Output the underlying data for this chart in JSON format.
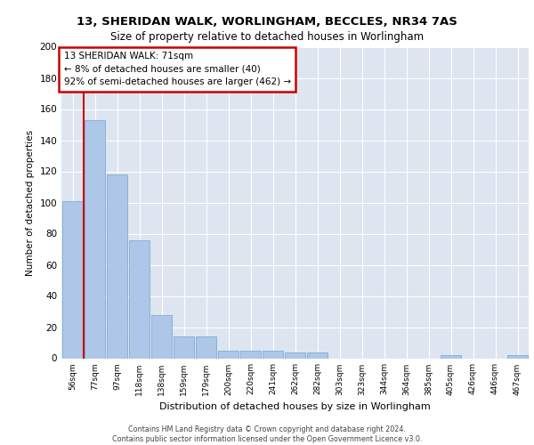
{
  "title_line1": "13, SHERIDAN WALK, WORLINGHAM, BECCLES, NR34 7AS",
  "title_line2": "Size of property relative to detached houses in Worlingham",
  "xlabel": "Distribution of detached houses by size in Worlingham",
  "ylabel": "Number of detached properties",
  "categories": [
    "56sqm",
    "77sqm",
    "97sqm",
    "118sqm",
    "138sqm",
    "159sqm",
    "179sqm",
    "200sqm",
    "220sqm",
    "241sqm",
    "262sqm",
    "282sqm",
    "303sqm",
    "323sqm",
    "344sqm",
    "364sqm",
    "385sqm",
    "405sqm",
    "426sqm",
    "446sqm",
    "467sqm"
  ],
  "values": [
    101,
    153,
    118,
    76,
    28,
    14,
    14,
    5,
    5,
    5,
    4,
    4,
    0,
    0,
    0,
    0,
    0,
    2,
    0,
    0,
    2
  ],
  "bar_color": "#aec6e8",
  "bar_edge_color": "#7bafd4",
  "highlight_color": "#cc0000",
  "background_color": "#dde5f0",
  "annotation_text": "13 SHERIDAN WALK: 71sqm\n← 8% of detached houses are smaller (40)\n92% of semi-detached houses are larger (462) →",
  "annotation_box_color": "#ffffff",
  "annotation_box_edge_color": "#cc0000",
  "footer_text": "Contains HM Land Registry data © Crown copyright and database right 2024.\nContains public sector information licensed under the Open Government Licence v3.0.",
  "ylim": [
    0,
    200
  ],
  "yticks": [
    0,
    20,
    40,
    60,
    80,
    100,
    120,
    140,
    160,
    180,
    200
  ],
  "property_line_x": 0.5
}
